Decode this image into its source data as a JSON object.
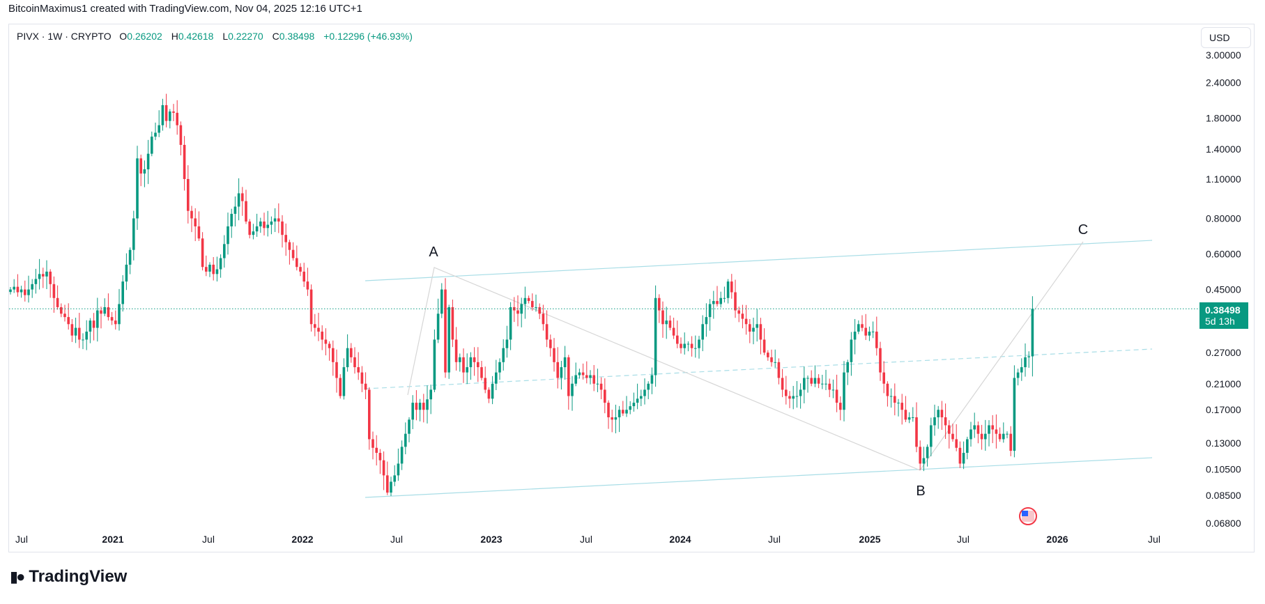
{
  "watermark": "BitcoinMaximus1 created with TradingView.com, Nov 04, 2025 12:16 UTC+1",
  "legend": {
    "symbol": "PIVX · 1W · CRYPTO",
    "o_label": "O",
    "o": "0.26202",
    "h_label": "H",
    "h": "0.42618",
    "l_label": "L",
    "l": "0.22270",
    "c_label": "C",
    "c": "0.38498",
    "change": "+0.12296 (+46.93%)"
  },
  "currency_button": "USD",
  "price_label": {
    "price": "0.38498",
    "countdown": "5d 13h"
  },
  "logo": {
    "text": "TradingView",
    "mark": "17"
  },
  "colors": {
    "up": "#089981",
    "down": "#f23645",
    "channel": "#a8dde6",
    "wave": "#d6d6d6",
    "price_line": "#089981"
  },
  "icons": {
    "event": "us-flag-economic-event-icon"
  },
  "chart_data": {
    "type": "candlestick",
    "interval": "1W",
    "yscale": "log",
    "ylim": [
      0.068,
      3.0
    ],
    "xlim": [
      "2020-06",
      "2026-07"
    ],
    "start": "2020-06-01",
    "grid": false,
    "yticks": [
      "3.00000",
      "2.40000",
      "1.80000",
      "1.40000",
      "1.10000",
      "0.80000",
      "0.60000",
      "0.45000",
      "0.27000",
      "0.21000",
      "0.17000",
      "0.13000",
      "0.10500",
      "0.08500",
      "0.06800"
    ],
    "xticks": [
      {
        "label": "Jul",
        "year": false
      },
      {
        "label": "2021",
        "year": true
      },
      {
        "label": "Jul",
        "year": false
      },
      {
        "label": "2022",
        "year": true
      },
      {
        "label": "Jul",
        "year": false
      },
      {
        "label": "2023",
        "year": true
      },
      {
        "label": "Jul",
        "year": false
      },
      {
        "label": "2024",
        "year": true
      },
      {
        "label": "Jul",
        "year": false
      },
      {
        "label": "2025",
        "year": true
      },
      {
        "label": "Jul",
        "year": false
      },
      {
        "label": "2026",
        "year": true
      },
      {
        "label": "Jul",
        "year": false
      }
    ],
    "closes": [
      0.45,
      0.46,
      0.44,
      0.45,
      0.43,
      0.45,
      0.47,
      0.49,
      0.51,
      0.5,
      0.52,
      0.47,
      0.42,
      0.39,
      0.37,
      0.36,
      0.34,
      0.31,
      0.33,
      0.3,
      0.3,
      0.32,
      0.35,
      0.33,
      0.38,
      0.37,
      0.39,
      0.36,
      0.35,
      0.34,
      0.4,
      0.48,
      0.55,
      0.62,
      0.8,
      1.3,
      1.15,
      1.19,
      1.35,
      1.55,
      1.6,
      1.7,
      2.0,
      1.76,
      1.9,
      1.88,
      1.7,
      1.45,
      1.1,
      0.85,
      0.8,
      0.75,
      0.68,
      0.54,
      0.52,
      0.55,
      0.51,
      0.53,
      0.58,
      0.65,
      0.75,
      0.83,
      0.88,
      0.98,
      0.92,
      0.78,
      0.7,
      0.72,
      0.75,
      0.78,
      0.74,
      0.76,
      0.78,
      0.8,
      0.78,
      0.7,
      0.66,
      0.62,
      0.58,
      0.54,
      0.52,
      0.48,
      0.45,
      0.34,
      0.33,
      0.32,
      0.3,
      0.29,
      0.28,
      0.25,
      0.22,
      0.19,
      0.24,
      0.28,
      0.26,
      0.24,
      0.23,
      0.21,
      0.2,
      0.134,
      0.125,
      0.12,
      0.113,
      0.1,
      0.087,
      0.095,
      0.1,
      0.11,
      0.126,
      0.14,
      0.157,
      0.18,
      0.17,
      0.18,
      0.17,
      0.185,
      0.2,
      0.3,
      0.37,
      0.45,
      0.23,
      0.39,
      0.3,
      0.25,
      0.26,
      0.23,
      0.24,
      0.26,
      0.25,
      0.24,
      0.22,
      0.2,
      0.186,
      0.21,
      0.23,
      0.25,
      0.28,
      0.3,
      0.39,
      0.38,
      0.37,
      0.4,
      0.42,
      0.41,
      0.39,
      0.39,
      0.37,
      0.34,
      0.3,
      0.28,
      0.25,
      0.22,
      0.24,
      0.26,
      0.19,
      0.21,
      0.225,
      0.23,
      0.225,
      0.22,
      0.225,
      0.21,
      0.21,
      0.2,
      0.18,
      0.16,
      0.157,
      0.16,
      0.17,
      0.165,
      0.17,
      0.175,
      0.18,
      0.186,
      0.19,
      0.2,
      0.21,
      0.225,
      0.42,
      0.38,
      0.34,
      0.35,
      0.33,
      0.31,
      0.29,
      0.28,
      0.29,
      0.29,
      0.28,
      0.28,
      0.3,
      0.34,
      0.36,
      0.4,
      0.41,
      0.4,
      0.42,
      0.42,
      0.48,
      0.44,
      0.38,
      0.37,
      0.355,
      0.34,
      0.32,
      0.33,
      0.34,
      0.3,
      0.27,
      0.26,
      0.25,
      0.25,
      0.22,
      0.2,
      0.19,
      0.186,
      0.19,
      0.19,
      0.2,
      0.22,
      0.22,
      0.21,
      0.22,
      0.21,
      0.21,
      0.21,
      0.2,
      0.2,
      0.18,
      0.17,
      0.23,
      0.25,
      0.3,
      0.32,
      0.34,
      0.33,
      0.31,
      0.32,
      0.32,
      0.28,
      0.23,
      0.21,
      0.19,
      0.19,
      0.18,
      0.18,
      0.17,
      0.157,
      0.16,
      0.16,
      0.126,
      0.11,
      0.115,
      0.126,
      0.15,
      0.16,
      0.17,
      0.16,
      0.15,
      0.14,
      0.134,
      0.125,
      0.11,
      0.12,
      0.134,
      0.145,
      0.15,
      0.14,
      0.134,
      0.14,
      0.15,
      0.145,
      0.14,
      0.134,
      0.14,
      0.14,
      0.122,
      0.22,
      0.23,
      0.24,
      0.26,
      0.26202,
      0.38498
    ],
    "last_candle": {
      "open": 0.26202,
      "high": 0.42618,
      "low": 0.2227,
      "close": 0.38498
    },
    "last_price": 0.38498,
    "annotations": [
      "A",
      "B",
      "C"
    ]
  }
}
